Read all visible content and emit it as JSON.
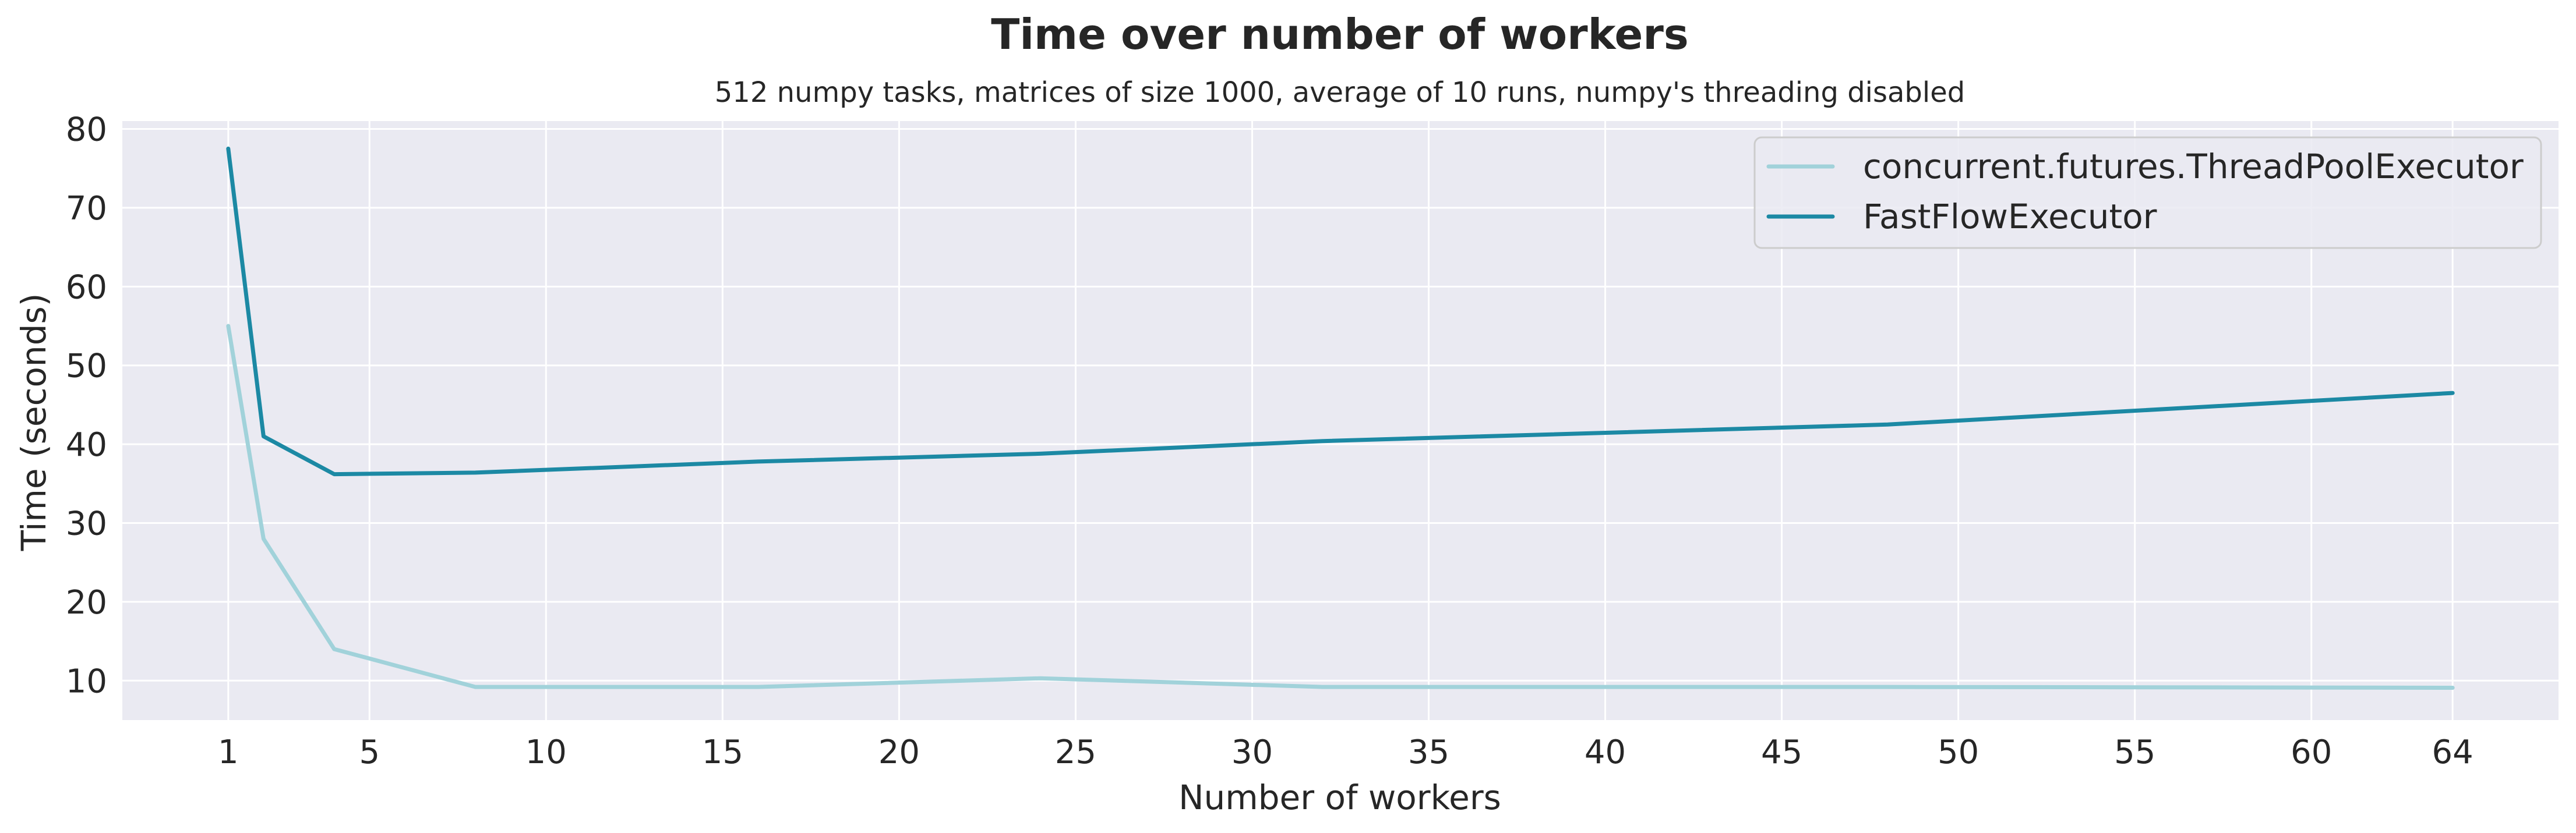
{
  "chart_data": {
    "type": "line",
    "title": "Time over number of workers",
    "subtitle": "512 numpy tasks, matrices of size 1000, average of 10 runs, numpy's threading disabled",
    "xlabel": "Number of workers",
    "ylabel": "Time (seconds)",
    "xlim": [
      -2,
      67
    ],
    "ylim": [
      5,
      81
    ],
    "x_ticks": [
      1,
      5,
      10,
      15,
      20,
      25,
      30,
      35,
      40,
      45,
      50,
      55,
      60,
      64
    ],
    "y_ticks": [
      10,
      20,
      30,
      40,
      50,
      60,
      70,
      80
    ],
    "grid": true,
    "legend_position": "top-right",
    "x": [
      1,
      2,
      4,
      8,
      16,
      24,
      32,
      48,
      64
    ],
    "series": [
      {
        "name": "concurrent.futures.ThreadPoolExecutor",
        "color": "#a1d2da",
        "values": [
          55,
          28,
          14,
          9.2,
          9.2,
          10.3,
          9.2,
          9.2,
          9.1
        ]
      },
      {
        "name": "FastFlowExecutor",
        "color": "#1c89a4",
        "values": [
          77.5,
          41,
          36.2,
          36.4,
          37.8,
          38.8,
          40.4,
          42.5,
          46.5
        ]
      }
    ],
    "colors": {
      "plot_background": "#eaeaf2",
      "grid": "#ffffff",
      "text": "#262626"
    }
  }
}
